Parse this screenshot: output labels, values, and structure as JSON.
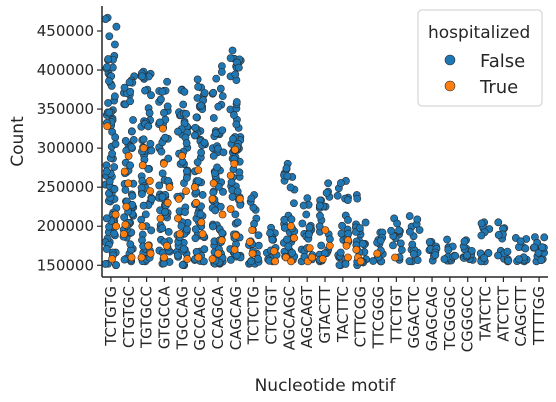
{
  "chart_data": {
    "type": "scatter",
    "subtype": "strip",
    "xlabel": "Nucleotide motif",
    "ylabel": "Count",
    "ylim": [
      135000,
      482000
    ],
    "yticks": [
      150000,
      200000,
      250000,
      300000,
      350000,
      400000,
      450000
    ],
    "grid": false,
    "legend": {
      "title": "hospitalized",
      "placement": "top-right"
    },
    "categories": [
      "TCTGTG",
      "CTGTGC",
      "TGTGCC",
      "GTGCCA",
      "TGCCAG",
      "GCCAGC",
      "CCAGCA",
      "CAGCAG",
      "TCTCTG",
      "CTCTGT",
      "AGCAGC",
      "AGCAGT",
      "GTACTT",
      "TACTTC",
      "CTTCGG",
      "TTCGGG",
      "TTCTGT",
      "GGACTC",
      "GAGCAG",
      "TCGGGC",
      "CGGGCC",
      "TATCTC",
      "ATCTCT",
      "CAGCTT",
      "TTTTGG"
    ],
    "series": [
      {
        "name": "False",
        "color": "#1f77b4",
        "summary": [
          [
            150000,
            467000
          ],
          [
            155000,
            392000
          ],
          [
            155000,
            398000
          ],
          [
            152000,
            385000
          ],
          [
            150000,
            375000
          ],
          [
            155000,
            388000
          ],
          [
            152000,
            405000
          ],
          [
            157000,
            425000
          ],
          [
            152000,
            240000
          ],
          [
            155000,
            198000
          ],
          [
            157000,
            280000
          ],
          [
            155000,
            236000
          ],
          [
            155000,
            255000
          ],
          [
            150000,
            258000
          ],
          [
            150000,
            240000
          ],
          [
            155000,
            192000
          ],
          [
            157000,
            210000
          ],
          [
            155000,
            213000
          ],
          [
            156000,
            180000
          ],
          [
            156000,
            183000
          ],
          [
            157000,
            182000
          ],
          [
            155000,
            205000
          ],
          [
            155000,
            205000
          ],
          [
            155000,
            185000
          ],
          [
            155000,
            186000
          ]
        ]
      },
      {
        "name": "True",
        "color": "#ff7f0e",
        "points": [
          [
            0,
            328000
          ],
          [
            0,
            158000
          ],
          [
            0,
            200000
          ],
          [
            0,
            215000
          ],
          [
            1,
            290000
          ],
          [
            1,
            270000
          ],
          [
            1,
            255000
          ],
          [
            1,
            225000
          ],
          [
            1,
            190000
          ],
          [
            1,
            160000
          ],
          [
            1,
            202000
          ],
          [
            2,
            300000
          ],
          [
            2,
            278000
          ],
          [
            2,
            258000
          ],
          [
            2,
            245000
          ],
          [
            2,
            200000
          ],
          [
            2,
            175000
          ],
          [
            2,
            160000
          ],
          [
            2,
            165000
          ],
          [
            3,
            325000
          ],
          [
            3,
            280000
          ],
          [
            3,
            250000
          ],
          [
            3,
            230000
          ],
          [
            3,
            210000
          ],
          [
            3,
            175000
          ],
          [
            3,
            160000
          ],
          [
            4,
            290000
          ],
          [
            4,
            245000
          ],
          [
            4,
            235000
          ],
          [
            4,
            210000
          ],
          [
            4,
            190000
          ],
          [
            4,
            158000
          ],
          [
            5,
            272000
          ],
          [
            5,
            250000
          ],
          [
            5,
            230000
          ],
          [
            5,
            205000
          ],
          [
            5,
            190000
          ],
          [
            5,
            160000
          ],
          [
            6,
            255000
          ],
          [
            6,
            235000
          ],
          [
            6,
            215000
          ],
          [
            6,
            182000
          ],
          [
            6,
            165000
          ],
          [
            6,
            158000
          ],
          [
            7,
            298000
          ],
          [
            7,
            280000
          ],
          [
            7,
            265000
          ],
          [
            7,
            235000
          ],
          [
            7,
            222000
          ],
          [
            7,
            188000
          ],
          [
            7,
            170000
          ],
          [
            8,
            195000
          ],
          [
            8,
            180000
          ],
          [
            8,
            165000
          ],
          [
            9,
            168000
          ],
          [
            9,
            155000
          ],
          [
            10,
            200000
          ],
          [
            10,
            185000
          ],
          [
            10,
            160000
          ],
          [
            10,
            155000
          ],
          [
            11,
            172000
          ],
          [
            11,
            155000
          ],
          [
            11,
            160000
          ],
          [
            12,
            195000
          ],
          [
            12,
            175000
          ],
          [
            12,
            158000
          ],
          [
            13,
            182000
          ],
          [
            13,
            175000
          ],
          [
            13,
            160000
          ],
          [
            14,
            170000
          ],
          [
            14,
            160000
          ],
          [
            14,
            155000
          ],
          [
            15,
            165000
          ],
          [
            16,
            160000
          ]
        ]
      }
    ]
  }
}
